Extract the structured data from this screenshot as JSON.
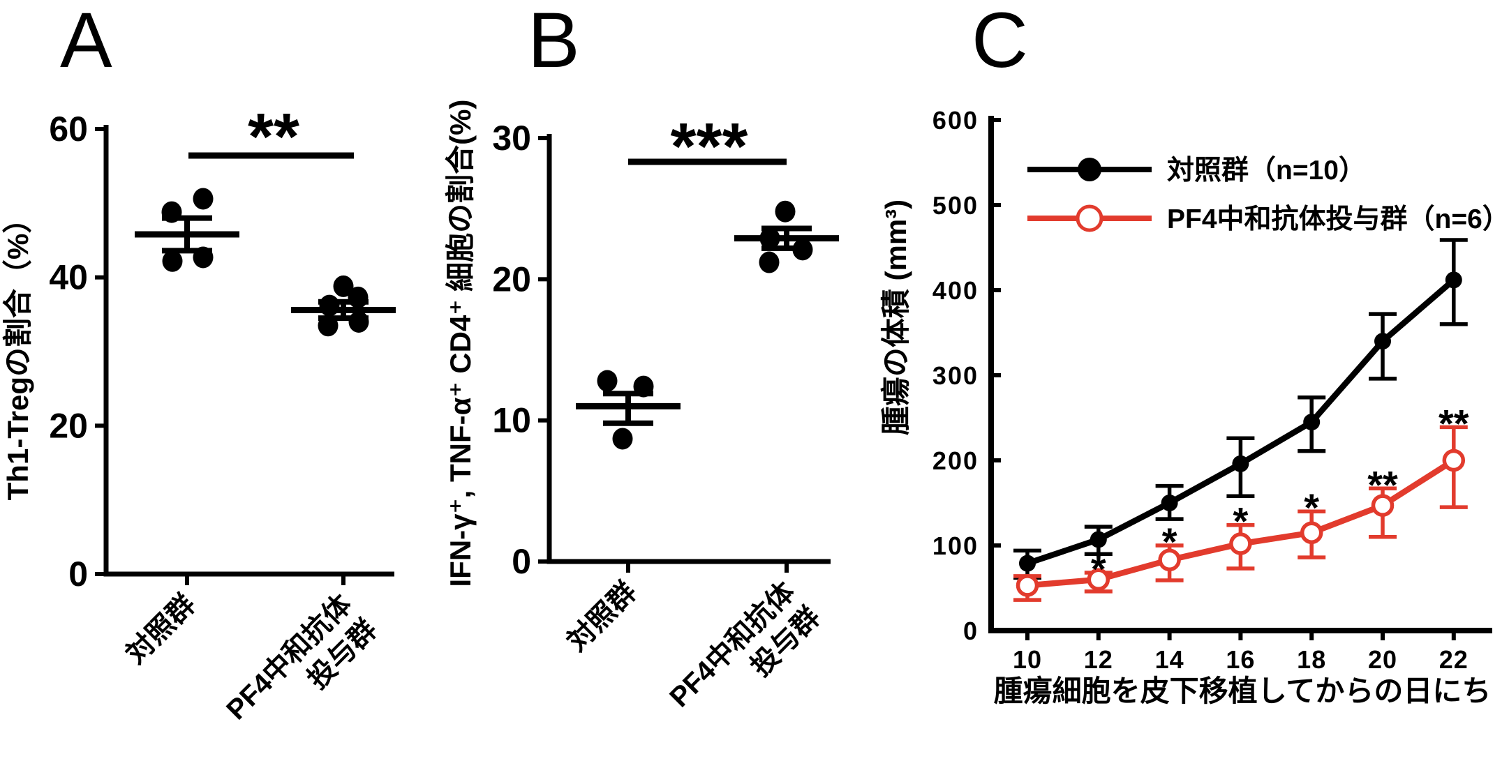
{
  "colors": {
    "control": "#000000",
    "treatment": "#e23b2d"
  },
  "chart_data": [
    {
      "type": "scatter",
      "panel_label": "A",
      "ylabel": "Th1-Tregの割合（%）",
      "ylim": [
        0,
        60
      ],
      "yticks": [
        0,
        20,
        40,
        60
      ],
      "significance": "**",
      "categories": [
        "対照群",
        "PF4中和抗体投与群"
      ],
      "category_labels": [
        [
          "対照群"
        ],
        [
          "PF4中和抗体",
          "投与群"
        ]
      ],
      "grid": false,
      "groups": [
        {
          "name": "対照群",
          "points": [
            48.8,
            50.6,
            42.2,
            42.7
          ],
          "jitter": [
            -22,
            23,
            -21,
            23
          ],
          "mean": 45.8,
          "err_lo": 43.6,
          "err_hi": 48.0
        },
        {
          "name": "PF4中和抗体投与群",
          "points": [
            38.8,
            37.3,
            36.2,
            33.5,
            34.0
          ],
          "jitter": [
            0,
            21,
            -20,
            -22,
            22
          ],
          "mean": 35.6,
          "err_lo": 34.5,
          "err_hi": 36.7
        }
      ]
    },
    {
      "type": "scatter",
      "panel_label": "B",
      "ylabel": "IFN-γ⁺, TNF-α⁺ CD4⁺ 細胞の割合(%)",
      "ylim": [
        0,
        30
      ],
      "yticks": [
        0,
        10,
        20,
        30
      ],
      "significance": "***",
      "categories": [
        "対照群",
        "PF4中和抗体投与群"
      ],
      "category_labels": [
        [
          "対照群"
        ],
        [
          "PF4中和抗体",
          "投与群"
        ]
      ],
      "grid": false,
      "groups": [
        {
          "name": "対照群",
          "points": [
            12.8,
            12.4,
            8.7
          ],
          "jitter": [
            -30,
            22,
            -8
          ],
          "mean": 11.0,
          "err_lo": 9.8,
          "err_hi": 11.9
        },
        {
          "name": "PF4中和抗体投与群",
          "points": [
            24.8,
            22.9,
            22.1,
            21.2
          ],
          "jitter": [
            -2,
            -24,
            23,
            -25
          ],
          "mean": 22.9,
          "err_lo": 22.2,
          "err_hi": 23.6
        }
      ]
    },
    {
      "type": "line",
      "panel_label": "C",
      "xlabel": "腫瘍細胞を皮下移植してからの日にち",
      "ylabel": "腫瘍の体積 (mm³)",
      "x": [
        10,
        12,
        14,
        16,
        18,
        20,
        22
      ],
      "xticks": [
        10,
        12,
        14,
        16,
        18,
        20,
        22
      ],
      "ylim": [
        0,
        600
      ],
      "yticks": [
        0,
        100,
        200,
        300,
        400,
        500,
        600
      ],
      "grid": false,
      "legend_position": "top-left-inside",
      "series": [
        {
          "name": "対照群（n=10）",
          "color": "#000000",
          "marker": "filled-circle",
          "values": [
            79,
            107,
            150,
            196,
            245,
            340,
            412
          ],
          "err_lo": [
            62,
            90,
            131,
            158,
            211,
            296,
            360
          ],
          "err_hi": [
            94,
            122,
            170,
            226,
            274,
            372,
            459
          ],
          "sig": [
            "",
            "",
            "",
            "",
            "",
            "",
            ""
          ]
        },
        {
          "name": "PF4中和抗体投与群（n=6）",
          "color": "#e23b2d",
          "marker": "open-circle",
          "values": [
            53,
            60,
            83,
            102,
            115,
            147,
            200
          ],
          "err_lo": [
            36,
            46,
            59,
            73,
            86,
            110,
            145
          ],
          "err_hi": [
            64,
            68,
            100,
            124,
            140,
            167,
            239
          ],
          "sig": [
            "",
            "*",
            "*",
            "*",
            "*",
            "**",
            "**"
          ]
        }
      ]
    }
  ]
}
